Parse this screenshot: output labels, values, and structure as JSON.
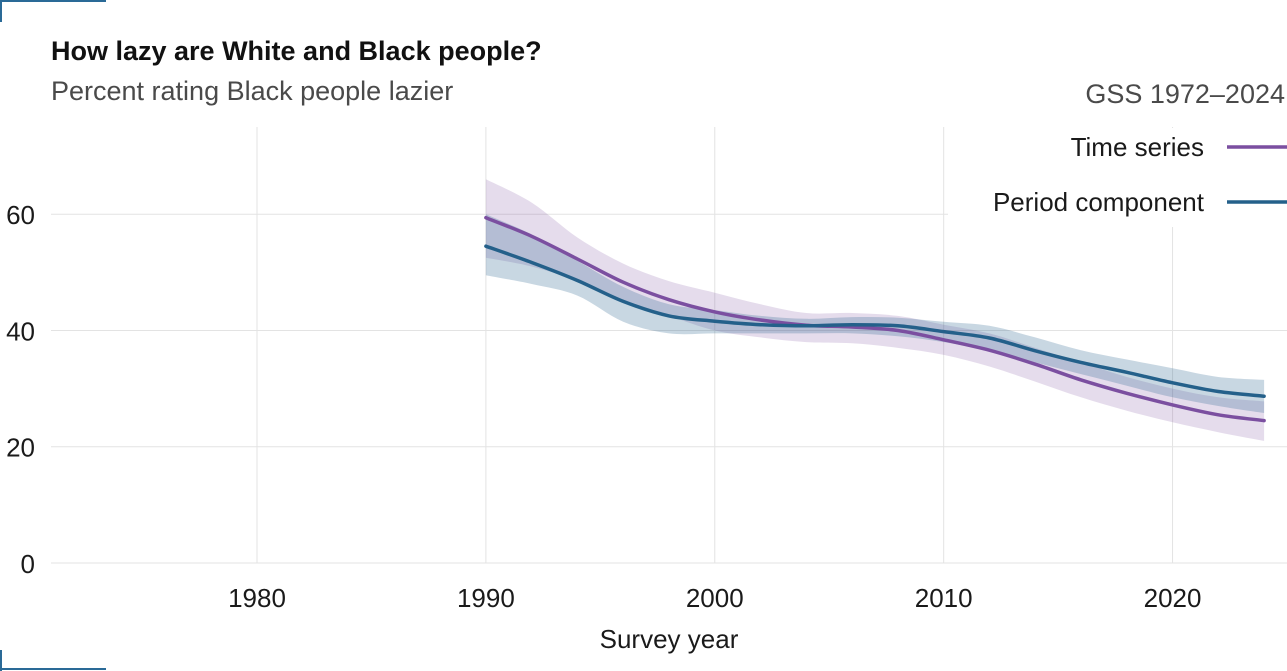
{
  "header": {
    "title": "How lazy are White and Black people?",
    "subtitle": "Percent rating Black people lazier",
    "source": "GSS 1972–2024"
  },
  "colors": {
    "time_series": "#7b4fa0",
    "period_component": "#24608a",
    "grid": "#e3e3e3",
    "corner_marks": "#2a6a97"
  },
  "chart_data": {
    "type": "line",
    "title": "How lazy are White and Black people?",
    "subtitle": "Percent rating Black people lazier",
    "xlabel": "Survey year",
    "ylabel": "",
    "xlim": [
      1971,
      2025
    ],
    "ylim": [
      0,
      75
    ],
    "x_ticks": [
      "1980",
      "1990",
      "2000",
      "2010",
      "2020"
    ],
    "y_ticks": [
      "0",
      "20",
      "40",
      "60"
    ],
    "grid": true,
    "legend_position": "top-right",
    "series": [
      {
        "name": "Time series",
        "color": "#7b4fa0",
        "x": [
          1990,
          1992,
          1994,
          1996,
          1998,
          2000,
          2002,
          2004,
          2006,
          2008,
          2010,
          2012,
          2014,
          2016,
          2018,
          2020,
          2022,
          2024
        ],
        "y": [
          59.4,
          56.2,
          52.3,
          48.3,
          45.3,
          43.2,
          41.8,
          40.9,
          40.6,
          40.0,
          38.4,
          36.6,
          34.2,
          31.5,
          29.2,
          27.2,
          25.5,
          24.5
        ],
        "lower": [
          52.5,
          51.0,
          48.5,
          45.0,
          42.5,
          40.0,
          38.8,
          38.0,
          37.8,
          37.0,
          35.8,
          33.8,
          31.2,
          28.5,
          26.2,
          24.2,
          22.5,
          21.0
        ],
        "upper": [
          66.0,
          62.0,
          56.0,
          51.5,
          48.5,
          46.5,
          44.5,
          43.0,
          43.0,
          42.5,
          41.0,
          39.5,
          37.0,
          34.5,
          32.0,
          30.0,
          28.5,
          27.8
        ]
      },
      {
        "name": "Period component",
        "color": "#24608a",
        "x": [
          1990,
          1992,
          1994,
          1996,
          1998,
          2000,
          2002,
          2004,
          2006,
          2008,
          2010,
          2012,
          2014,
          2016,
          2018,
          2020,
          2022,
          2024
        ],
        "y": [
          54.5,
          51.7,
          48.6,
          45.0,
          42.5,
          41.6,
          41.0,
          40.8,
          41.0,
          40.8,
          39.8,
          38.7,
          36.5,
          34.5,
          32.8,
          31.0,
          29.5,
          28.7
        ],
        "lower": [
          49.5,
          48.0,
          46.0,
          41.5,
          39.5,
          39.5,
          39.5,
          39.5,
          39.5,
          39.0,
          38.0,
          36.5,
          34.5,
          32.5,
          30.5,
          28.5,
          27.0,
          25.8
        ],
        "upper": [
          60.0,
          56.5,
          52.0,
          47.5,
          44.5,
          43.5,
          42.5,
          42.0,
          42.3,
          42.2,
          41.5,
          40.8,
          38.8,
          36.6,
          35.0,
          33.5,
          32.0,
          31.5
        ]
      }
    ]
  }
}
